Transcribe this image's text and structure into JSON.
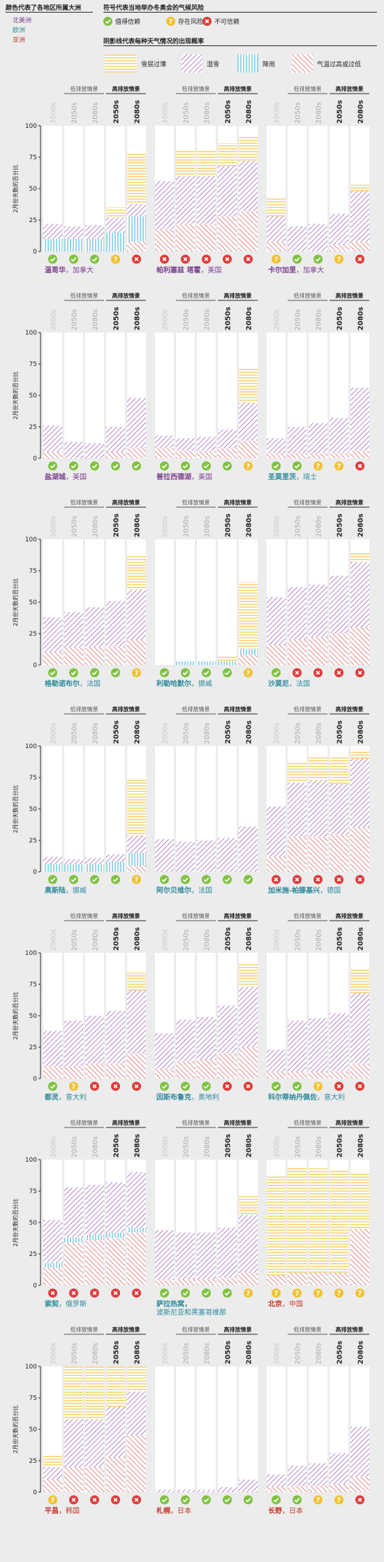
{
  "legend": {
    "continent_title": "颜色代表了各地区所属大洲",
    "continents": [
      {
        "label": "北美洲",
        "color": "#7a3f8e"
      },
      {
        "label": "欧洲",
        "color": "#2e8a9b"
      },
      {
        "label": "亚洲",
        "color": "#c0392b"
      }
    ],
    "risk_title": "符号代表当地举办冬奥会的气候风险",
    "risks": [
      {
        "key": "reliable",
        "label": "值得信赖",
        "color": "#7fc241",
        "icon": "check-icon"
      },
      {
        "key": "risky",
        "label": "存在风险",
        "color": "#f1c232",
        "icon": "question-icon"
      },
      {
        "key": "unreliable",
        "label": "不可信赖",
        "color": "#e03b3b",
        "icon": "x-icon"
      }
    ],
    "pattern_title": "阴影线代表每种天气情况的出现概率",
    "patterns": [
      {
        "key": "snow",
        "label": "雪层过薄",
        "color": "#f0c440"
      },
      {
        "key": "wet",
        "label": "湿雪",
        "color": "#a064c0"
      },
      {
        "key": "rain",
        "label": "降雨",
        "color": "#53b8d8"
      },
      {
        "key": "warm",
        "label": "气温过高或过低",
        "color": "#e06a6a"
      }
    ]
  },
  "common": {
    "scenario_low": "低排放情景",
    "scenario_high": "高排放情景",
    "decades": [
      "2000s",
      "2050s",
      "2080s",
      "2050s",
      "2080s"
    ],
    "ylabel": "2月份天数的百分比",
    "yticks": [
      0,
      25,
      50,
      75,
      100
    ]
  },
  "chart_data": {
    "type": "bar",
    "stacked": true,
    "ylim": [
      0,
      100
    ],
    "ylabel": "2月份天数的百分比",
    "categories": [
      "2000s",
      "2050s (低排放情景)",
      "2080s (低排放情景)",
      "2050s (高排放情景)",
      "2080s (高排放情景)"
    ],
    "series_order": [
      "warm",
      "rain",
      "wet",
      "snow"
    ],
    "cities": [
      {
        "name": "温哥华",
        "country": "加拿大",
        "continent": "北美洲",
        "risk": [
          "reliable",
          "reliable",
          "reliable",
          "risky",
          "unreliable"
        ],
        "values": {
          "warm": [
            0,
            0,
            0,
            0,
            8
          ],
          "rain": [
            10,
            10,
            10,
            15,
            20
          ],
          "wet": [
            12,
            10,
            11,
            12,
            10
          ],
          "snow": [
            0,
            0,
            0,
            8,
            40
          ]
        }
      },
      {
        "name": "帕利塞兹 塔霍",
        "country": "美国",
        "continent": "北美洲",
        "risk": [
          "unreliable",
          "unreliable",
          "unreliable",
          "unreliable",
          "unreliable"
        ],
        "values": {
          "warm": [
            18,
            22,
            22,
            28,
            32
          ],
          "rain": [
            0,
            0,
            0,
            0,
            0
          ],
          "wet": [
            38,
            38,
            38,
            40,
            40
          ],
          "snow": [
            0,
            20,
            20,
            18,
            20
          ]
        }
      },
      {
        "name": "卡尔加里",
        "country": "加拿大",
        "continent": "北美洲",
        "risk": [
          "risky",
          "reliable",
          "reliable",
          "risky",
          "unreliable"
        ],
        "values": {
          "warm": [
            8,
            0,
            0,
            5,
            8
          ],
          "rain": [
            0,
            0,
            0,
            0,
            0
          ],
          "wet": [
            20,
            20,
            22,
            25,
            40
          ],
          "snow": [
            14,
            0,
            0,
            0,
            5
          ]
        }
      },
      {
        "name": "盐湖城",
        "country": "美国",
        "continent": "北美洲",
        "risk": [
          "reliable",
          "reliable",
          "reliable",
          "reliable",
          "reliable"
        ],
        "values": {
          "warm": [
            5,
            0,
            0,
            5,
            8
          ],
          "rain": [
            0,
            0,
            0,
            0,
            0
          ],
          "wet": [
            21,
            13,
            12,
            20,
            40
          ],
          "snow": [
            0,
            0,
            0,
            0,
            0
          ]
        }
      },
      {
        "name": "普拉西德湖",
        "country": "美国",
        "continent": "北美洲",
        "risk": [
          "reliable",
          "reliable",
          "reliable",
          "reliable",
          "risky"
        ],
        "values": {
          "warm": [
            8,
            6,
            6,
            8,
            14
          ],
          "rain": [
            0,
            0,
            0,
            0,
            0
          ],
          "wet": [
            10,
            10,
            11,
            15,
            30
          ],
          "snow": [
            0,
            0,
            0,
            0,
            28
          ]
        }
      },
      {
        "name": "圣莫里茨",
        "country": "瑞士",
        "continent": "欧洲",
        "risk": [
          "reliable",
          "reliable",
          "risky",
          "risky",
          "unreliable"
        ],
        "values": {
          "warm": [
            4,
            4,
            4,
            4,
            6
          ],
          "rain": [
            0,
            0,
            0,
            0,
            0
          ],
          "wet": [
            12,
            21,
            24,
            28,
            50
          ],
          "snow": [
            0,
            0,
            0,
            0,
            0
          ]
        }
      },
      {
        "name": "格勒诺布尔",
        "country": "法国",
        "continent": "欧洲",
        "risk": [
          "reliable",
          "reliable",
          "reliable",
          "reliable",
          "risky"
        ],
        "values": {
          "warm": [
            10,
            14,
            14,
            15,
            20
          ],
          "rain": [
            0,
            0,
            0,
            0,
            0
          ],
          "wet": [
            28,
            28,
            32,
            36,
            40
          ],
          "snow": [
            0,
            0,
            0,
            0,
            27
          ]
        }
      },
      {
        "name": "利勒哈默尔",
        "country": "挪威",
        "continent": "欧洲",
        "risk": [
          "reliable",
          "reliable",
          "reliable",
          "reliable",
          "risky"
        ],
        "values": {
          "warm": [
            0,
            0,
            0,
            0,
            8
          ],
          "rain": [
            0,
            3,
            3,
            3,
            5
          ],
          "wet": [
            0,
            0,
            0,
            0,
            0
          ],
          "snow": [
            0,
            0,
            0,
            4,
            53
          ]
        }
      },
      {
        "name": "沙莫尼",
        "country": "法国",
        "continent": "欧洲",
        "risk": [
          "reliable",
          "unreliable",
          "unreliable",
          "unreliable",
          "unreliable"
        ],
        "values": {
          "warm": [
            16,
            20,
            22,
            25,
            30
          ],
          "rain": [
            0,
            0,
            0,
            0,
            0
          ],
          "wet": [
            38,
            42,
            42,
            46,
            52
          ],
          "snow": [
            0,
            0,
            0,
            0,
            8
          ]
        }
      },
      {
        "name": "奥斯陆",
        "country": "挪威",
        "continent": "欧洲",
        "risk": [
          "reliable",
          "reliable",
          "reliable",
          "reliable",
          "risky"
        ],
        "values": {
          "warm": [
            0,
            0,
            0,
            0,
            5
          ],
          "rain": [
            6,
            6,
            6,
            8,
            10
          ],
          "wet": [
            6,
            4,
            5,
            6,
            14
          ],
          "snow": [
            0,
            0,
            0,
            0,
            45
          ]
        }
      },
      {
        "name": "阿尔贝维尔",
        "country": "法国",
        "continent": "欧洲",
        "risk": [
          "reliable",
          "reliable",
          "reliable",
          "reliable",
          "reliable"
        ],
        "values": {
          "warm": [
            0,
            0,
            0,
            0,
            0
          ],
          "rain": [
            0,
            0,
            0,
            0,
            0
          ],
          "wet": [
            26,
            24,
            25,
            27,
            36
          ],
          "snow": [
            0,
            0,
            0,
            0,
            0
          ]
        }
      },
      {
        "name": "加米施-帕滕基兴",
        "country": "德国",
        "continent": "欧洲",
        "risk": [
          "unreliable",
          "unreliable",
          "unreliable",
          "unreliable",
          "unreliable"
        ],
        "values": {
          "warm": [
            12,
            28,
            28,
            30,
            35
          ],
          "rain": [
            0,
            0,
            0,
            0,
            0
          ],
          "wet": [
            40,
            43,
            45,
            40,
            55
          ],
          "snow": [
            0,
            17,
            18,
            22,
            7
          ]
        }
      },
      {
        "name": "都灵",
        "country": "意大利",
        "continent": "欧洲",
        "risk": [
          "reliable",
          "risky",
          "unreliable",
          "unreliable",
          "unreliable"
        ],
        "values": {
          "warm": [
            10,
            10,
            12,
            12,
            20
          ],
          "rain": [
            0,
            0,
            0,
            0,
            0
          ],
          "wet": [
            28,
            36,
            38,
            42,
            50
          ],
          "snow": [
            0,
            0,
            0,
            0,
            14
          ]
        }
      },
      {
        "name": "因斯布鲁克",
        "country": "奥地利",
        "continent": "欧洲",
        "risk": [
          "reliable",
          "reliable",
          "reliable",
          "unreliable",
          "unreliable"
        ],
        "values": {
          "warm": [
            8,
            14,
            15,
            20,
            25
          ],
          "rain": [
            0,
            0,
            0,
            0,
            0
          ],
          "wet": [
            28,
            33,
            34,
            38,
            48
          ],
          "snow": [
            0,
            0,
            0,
            0,
            18
          ]
        }
      },
      {
        "name": "科尔蒂纳丹佩佐",
        "country": "意大利",
        "continent": "欧洲",
        "risk": [
          "reliable",
          "reliable",
          "risky",
          "unreliable",
          "unreliable"
        ],
        "values": {
          "warm": [
            5,
            5,
            5,
            6,
            12
          ],
          "rain": [
            0,
            0,
            0,
            0,
            0
          ],
          "wet": [
            18,
            41,
            43,
            46,
            56
          ],
          "snow": [
            0,
            0,
            0,
            0,
            20
          ]
        }
      },
      {
        "name": "索契",
        "country": "俄罗斯",
        "continent": "欧洲",
        "risk": [
          "unreliable",
          "unreliable",
          "unreliable",
          "unreliable",
          "unreliable"
        ],
        "values": {
          "warm": [
            14,
            34,
            36,
            38,
            42
          ],
          "rain": [
            4,
            4,
            4,
            4,
            4
          ],
          "wet": [
            34,
            40,
            40,
            40,
            44
          ],
          "snow": [
            0,
            0,
            0,
            0,
            0
          ]
        }
      },
      {
        "name": "萨拉热窝",
        "country": "波斯尼亚和黑塞哥维那",
        "continent": "欧洲",
        "risk": [
          "reliable",
          "reliable",
          "reliable",
          "reliable",
          "risky"
        ],
        "values": {
          "warm": [
            4,
            5,
            5,
            6,
            10
          ],
          "rain": [
            0,
            0,
            0,
            0,
            0
          ],
          "wet": [
            40,
            37,
            37,
            40,
            46
          ],
          "snow": [
            0,
            0,
            0,
            0,
            15
          ]
        }
      },
      {
        "name": "北京",
        "country": "中国",
        "continent": "亚洲",
        "risk": [
          "risky",
          "risky",
          "risky",
          "risky",
          "risky"
        ],
        "values": {
          "warm": [
            8,
            10,
            10,
            10,
            45
          ],
          "rain": [
            0,
            0,
            0,
            0,
            0
          ],
          "wet": [
            0,
            0,
            0,
            0,
            0
          ],
          "snow": [
            80,
            84,
            83,
            82,
            45
          ]
        }
      },
      {
        "name": "平昌",
        "country": "韩国",
        "continent": "亚洲",
        "risk": [
          "risky",
          "unreliable",
          "unreliable",
          "unreliable",
          "unreliable"
        ],
        "values": {
          "warm": [
            10,
            20,
            20,
            28,
            45
          ],
          "rain": [
            0,
            0,
            0,
            0,
            0
          ],
          "wet": [
            10,
            38,
            38,
            40,
            35
          ],
          "snow": [
            10,
            42,
            42,
            32,
            20
          ]
        }
      },
      {
        "name": "札幌",
        "country": "日本",
        "continent": "亚洲",
        "risk": [
          "reliable",
          "reliable",
          "reliable",
          "reliable",
          "reliable"
        ],
        "values": {
          "warm": [
            0,
            0,
            0,
            0,
            0
          ],
          "rain": [
            0,
            0,
            0,
            0,
            0
          ],
          "wet": [
            2,
            2,
            2,
            4,
            10
          ],
          "snow": [
            0,
            0,
            0,
            0,
            0
          ]
        }
      },
      {
        "name": "长野",
        "country": "日本",
        "continent": "亚洲",
        "risk": [
          "reliable",
          "reliable",
          "risky",
          "risky",
          "unreliable"
        ],
        "values": {
          "warm": [
            4,
            5,
            5,
            6,
            12
          ],
          "rain": [
            0,
            0,
            0,
            0,
            0
          ],
          "wet": [
            10,
            16,
            18,
            25,
            40
          ],
          "snow": [
            0,
            0,
            0,
            0,
            0
          ]
        }
      }
    ]
  }
}
